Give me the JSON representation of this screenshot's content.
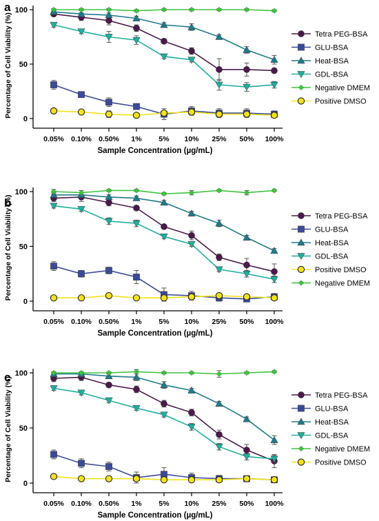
{
  "panel_labels": [
    "a",
    "b",
    "c"
  ],
  "chart_data": [
    {
      "type": "line",
      "panel": "a",
      "xlabel": "Sample Concentration (µg/mL)",
      "ylabel": "Percentage of Cell Viability (%)",
      "categories": [
        "0.05%",
        "0.10%",
        "0.50%",
        "1%",
        "5%",
        "10%",
        "25%",
        "50%",
        "100%"
      ],
      "ylim": [
        0,
        100
      ],
      "yticks": [
        "0",
        "50",
        "100"
      ],
      "legend_position": "right",
      "series": [
        {
          "name": "Tetra PEG-BSA",
          "color": "#4a1a4a",
          "marker": "circle",
          "values": [
            96,
            93,
            90,
            83,
            71,
            62,
            45,
            45,
            44
          ],
          "errors": [
            2,
            3,
            4,
            3,
            2,
            3,
            10,
            6,
            2
          ]
        },
        {
          "name": "GLU-BSA",
          "color": "#3b4a9a",
          "marker": "square",
          "values": [
            31,
            22,
            15,
            11,
            4,
            7,
            5,
            5,
            4
          ],
          "errors": [
            4,
            2,
            4,
            2,
            5,
            4,
            4,
            4,
            3
          ]
        },
        {
          "name": "Heat-BSA",
          "color": "#1f7a8c",
          "marker": "triangle",
          "values": [
            98,
            96,
            95,
            92,
            86,
            84,
            75,
            63,
            54
          ],
          "errors": [
            1,
            1,
            2,
            2,
            2,
            3,
            2,
            3,
            4
          ]
        },
        {
          "name": "GDL-BSA",
          "color": "#1fae9e",
          "marker": "triangle-down",
          "values": [
            86,
            80,
            75,
            72,
            57,
            54,
            31,
            29,
            31
          ],
          "errors": [
            2,
            2,
            5,
            4,
            2,
            2,
            5,
            4,
            3
          ]
        },
        {
          "name": "Negative DMEM",
          "color": "#3ec43e",
          "marker": "diamond",
          "values": [
            100,
            100,
            100,
            99,
            100,
            100,
            100,
            100,
            99
          ],
          "errors": [
            1,
            1,
            1,
            1,
            1,
            1,
            1,
            1,
            1
          ]
        },
        {
          "name": "Positive DMSO",
          "color": "#f2e21b",
          "marker": "circle",
          "values": [
            7,
            6,
            4,
            3,
            5,
            6,
            4,
            4,
            3
          ],
          "errors": [
            2,
            1,
            3,
            1,
            2,
            2,
            2,
            2,
            2
          ]
        }
      ]
    },
    {
      "type": "line",
      "panel": "b",
      "xlabel": "Sample Concentration (µg/mL)",
      "ylabel": "Percentage of Cell Viability (%)",
      "categories": [
        "0.05%",
        "0.10%",
        "0.50%",
        "1%",
        "5%",
        "10%",
        "25%",
        "50%",
        "100%"
      ],
      "ylim": [
        0,
        100
      ],
      "yticks": [
        "0",
        "50",
        "100"
      ],
      "legend_position": "right",
      "series": [
        {
          "name": "Tetra PEG-BSA",
          "color": "#4a1a4a",
          "marker": "circle",
          "values": [
            94,
            95,
            90,
            85,
            68,
            60,
            40,
            33,
            27
          ],
          "errors": [
            3,
            4,
            3,
            2,
            2,
            4,
            3,
            6,
            7
          ]
        },
        {
          "name": "GLU-BSA",
          "color": "#3b4a9a",
          "marker": "square",
          "values": [
            32,
            25,
            28,
            22,
            6,
            5,
            3,
            2,
            4
          ],
          "errors": [
            4,
            3,
            3,
            6,
            6,
            4,
            3,
            2,
            3
          ]
        },
        {
          "name": "Heat-BSA",
          "color": "#1f7a8c",
          "marker": "triangle",
          "values": [
            97,
            97,
            95,
            94,
            90,
            80,
            71,
            58,
            46
          ],
          "errors": [
            2,
            2,
            2,
            2,
            2,
            2,
            3,
            2,
            2
          ]
        },
        {
          "name": "GDL-BSA",
          "color": "#1fae9e",
          "marker": "triangle-down",
          "values": [
            87,
            84,
            73,
            71,
            59,
            52,
            29,
            25,
            20
          ],
          "errors": [
            2,
            2,
            3,
            3,
            2,
            2,
            2,
            3,
            3
          ]
        },
        {
          "name": "Positive  DMSO",
          "color": "#f2e21b",
          "marker": "circle",
          "values": [
            3,
            3,
            5,
            3,
            3,
            4,
            5,
            4,
            3
          ],
          "errors": [
            2,
            1,
            2,
            1,
            2,
            2,
            1,
            2,
            2
          ]
        },
        {
          "name": "Negative  DMEM",
          "color": "#3ec43e",
          "marker": "diamond",
          "values": [
            100,
            99,
            101,
            101,
            98,
            99,
            101,
            99,
            101
          ],
          "errors": [
            2,
            2,
            1,
            1,
            1,
            2,
            1,
            2,
            1
          ]
        }
      ]
    },
    {
      "type": "line",
      "panel": "c",
      "xlabel": "Sample Concentration (µg/mL)",
      "ylabel": "Percentage of Cell Viability (%)",
      "categories": [
        "0.05%",
        "0.10%",
        "0.50%",
        "1%",
        "5%",
        "10%",
        "25%",
        "50%",
        "100%"
      ],
      "ylim": [
        0,
        100
      ],
      "yticks": [
        "0",
        "50",
        "100"
      ],
      "legend_position": "right",
      "series": [
        {
          "name": "Tetra PEG-BSA",
          "color": "#4a1a4a",
          "marker": "circle",
          "values": [
            95,
            96,
            89,
            85,
            72,
            64,
            44,
            30,
            20
          ],
          "errors": [
            3,
            3,
            2,
            3,
            3,
            3,
            4,
            5,
            6
          ]
        },
        {
          "name": "GLU-BSA",
          "color": "#3b4a9a",
          "marker": "square",
          "values": [
            26,
            18,
            15,
            5,
            8,
            5,
            4,
            4,
            3
          ],
          "errors": [
            4,
            4,
            4,
            5,
            6,
            4,
            3,
            2,
            2
          ]
        },
        {
          "name": "Heat-BSA",
          "color": "#1f7a8c",
          "marker": "triangle",
          "values": [
            99,
            99,
            97,
            96,
            89,
            84,
            72,
            58,
            39
          ],
          "errors": [
            2,
            2,
            2,
            3,
            3,
            2,
            2,
            2,
            4
          ]
        },
        {
          "name": "GDL-BSA",
          "color": "#1fae9e",
          "marker": "triangle-down",
          "values": [
            86,
            82,
            75,
            68,
            62,
            51,
            33,
            24,
            22
          ],
          "errors": [
            2,
            2,
            2,
            2,
            2,
            3,
            3,
            3,
            3
          ]
        },
        {
          "name": "Negative DMEM",
          "color": "#3ec43e",
          "marker": "diamond",
          "values": [
            100,
            100,
            100,
            101,
            100,
            100,
            99,
            100,
            101
          ],
          "errors": [
            1,
            1,
            1,
            2,
            1,
            1,
            3,
            1,
            1
          ]
        },
        {
          "name": "Positive DMSO",
          "color": "#f2e21b",
          "marker": "circle",
          "values": [
            6,
            4,
            4,
            4,
            3,
            3,
            3,
            4,
            3
          ],
          "errors": [
            2,
            1,
            2,
            2,
            1,
            1,
            1,
            2,
            1
          ]
        }
      ]
    }
  ]
}
